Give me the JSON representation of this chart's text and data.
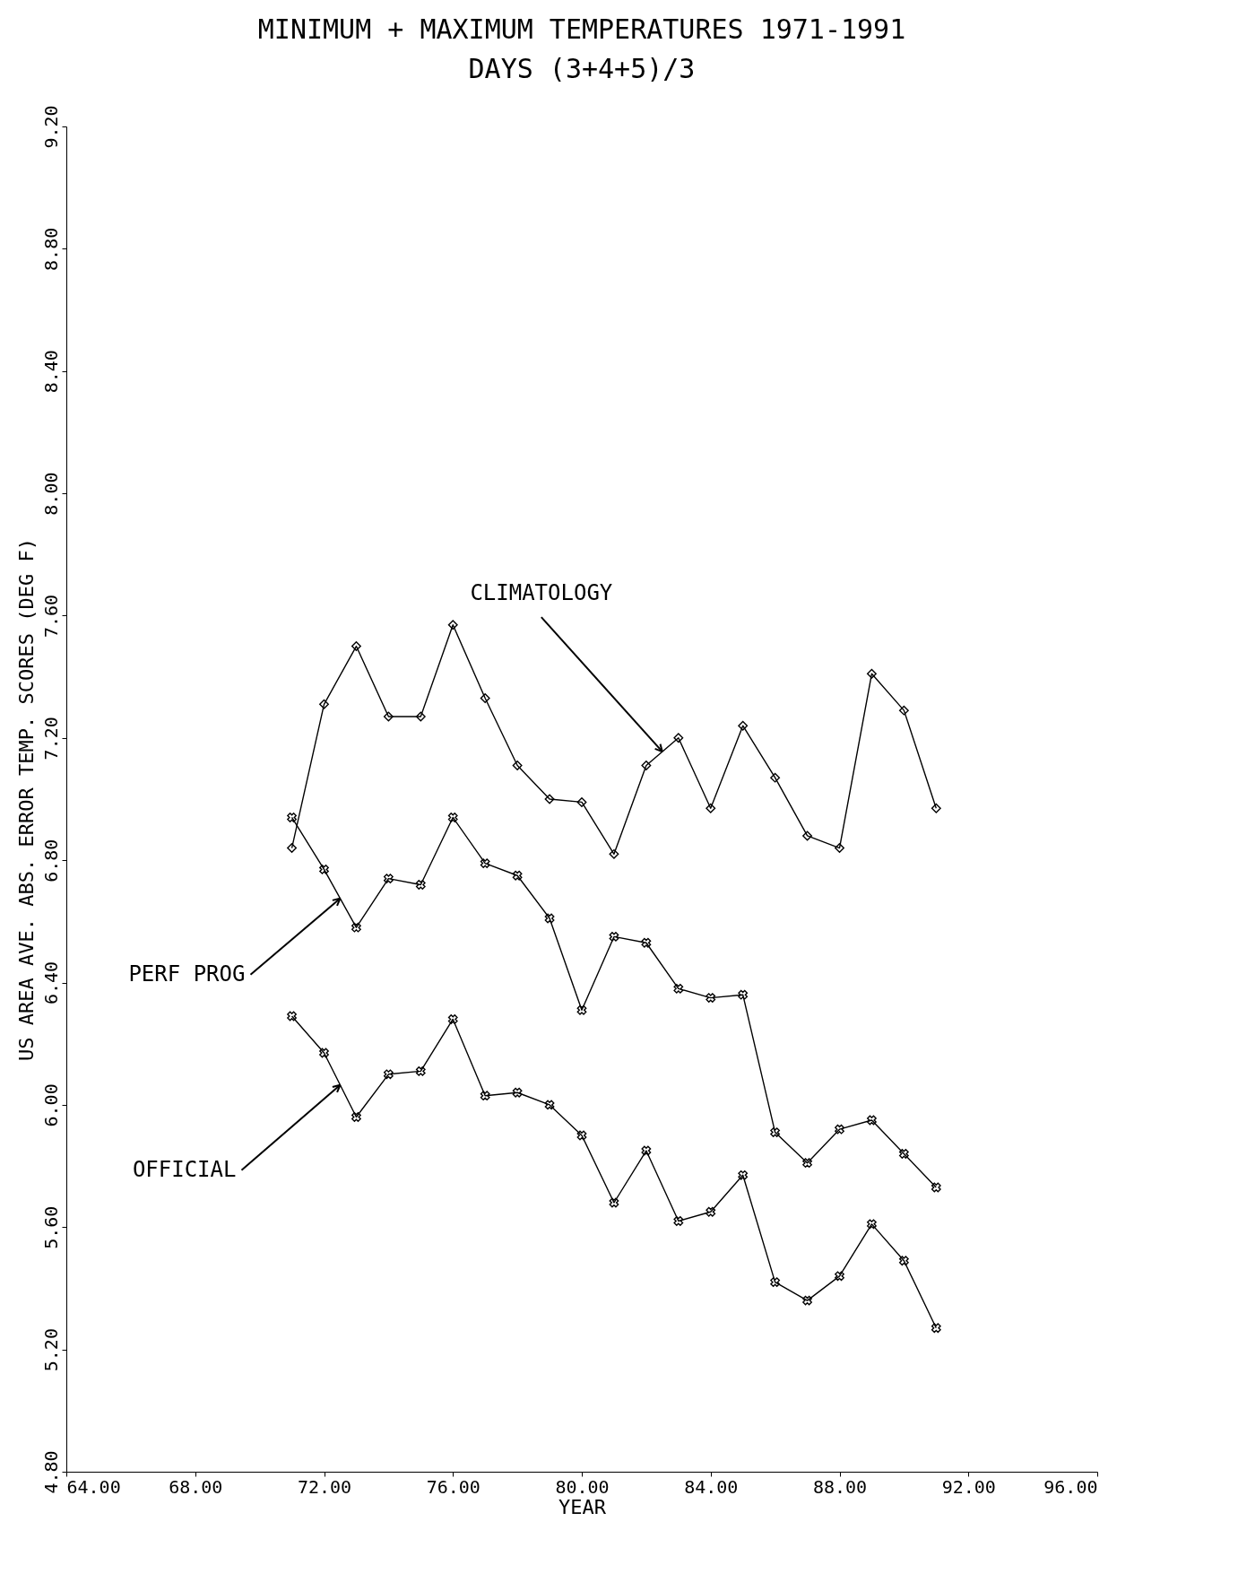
{
  "chart_data": {
    "type": "line",
    "title": "MINIMUM + MAXIMUM TEMPERATURES 1971-1991",
    "subtitle": "DAYS (3+4+5)/3",
    "xlabel": "YEAR",
    "ylabel": "US AREA AVE. ABS. ERROR TEMP. SCORES (DEG F)",
    "x": [
      71,
      72,
      73,
      74,
      75,
      76,
      77,
      78,
      79,
      80,
      81,
      82,
      83,
      84,
      85,
      86,
      87,
      88,
      89,
      90,
      91
    ],
    "series": [
      {
        "name": "CLIMATOLOGY",
        "color": "#000000",
        "marker": "diamond",
        "values": [
          6.84,
          7.31,
          7.5,
          7.27,
          7.27,
          7.57,
          7.33,
          7.11,
          7.0,
          6.99,
          6.82,
          7.11,
          7.2,
          6.97,
          7.24,
          7.07,
          6.88,
          6.84,
          7.41,
          7.29,
          6.97
        ]
      },
      {
        "name": "PERF PROG",
        "color": "#000000",
        "marker": "cross",
        "values": [
          6.94,
          6.77,
          6.58,
          6.74,
          6.72,
          6.94,
          6.79,
          6.75,
          6.61,
          6.31,
          6.55,
          6.53,
          6.38,
          6.35,
          6.36,
          5.91,
          5.81,
          5.92,
          5.95,
          5.84,
          5.73
        ]
      },
      {
        "name": "OFFICIAL",
        "color": "#000000",
        "marker": "cross",
        "values": [
          6.29,
          6.17,
          5.96,
          6.1,
          6.11,
          6.28,
          6.03,
          6.04,
          6.0,
          5.9,
          5.68,
          5.85,
          5.62,
          5.65,
          5.77,
          5.42,
          5.36,
          5.44,
          5.61,
          5.49,
          5.27
        ]
      }
    ],
    "xlim": [
      64,
      96
    ],
    "ylim": [
      4.8,
      9.2
    ],
    "xticks": [
      {
        "value": 64,
        "label": "64.00"
      },
      {
        "value": 68,
        "label": "68.00"
      },
      {
        "value": 72,
        "label": "72.00"
      },
      {
        "value": 76,
        "label": "76.00"
      },
      {
        "value": 80,
        "label": "80.00"
      },
      {
        "value": 84,
        "label": "84.00"
      },
      {
        "value": 88,
        "label": "88.00"
      },
      {
        "value": 92,
        "label": "92.00"
      },
      {
        "value": 96,
        "label": "96.00"
      }
    ],
    "yticks": [
      {
        "value": 4.8,
        "label": "4.80"
      },
      {
        "value": 5.2,
        "label": "5.20"
      },
      {
        "value": 5.6,
        "label": "5.60"
      },
      {
        "value": 6.0,
        "label": "6.00"
      },
      {
        "value": 6.4,
        "label": "6.40"
      },
      {
        "value": 6.8,
        "label": "6.80"
      },
      {
        "value": 7.2,
        "label": "7.20"
      },
      {
        "value": 7.6,
        "label": "7.60"
      },
      {
        "value": 8.0,
        "label": "8.00"
      },
      {
        "value": 8.4,
        "label": "8.40"
      },
      {
        "value": 8.8,
        "label": "8.80"
      },
      {
        "value": 9.2,
        "label": "9.20"
      }
    ],
    "grid": false
  }
}
